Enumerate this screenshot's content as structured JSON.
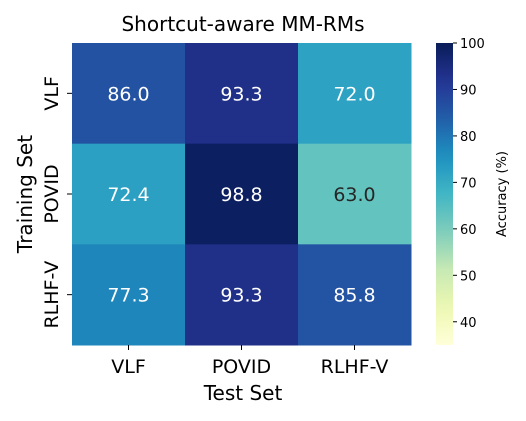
{
  "chart_data": {
    "type": "heatmap",
    "title": "Shortcut-aware MM-RMs",
    "xlabel": "Test Set",
    "ylabel": "Training Set",
    "x_categories": [
      "VLF",
      "POVID",
      "RLHF-V"
    ],
    "y_categories": [
      "VLF",
      "POVID",
      "RLHF-V"
    ],
    "values": [
      [
        86.0,
        93.3,
        72.0
      ],
      [
        72.4,
        98.8,
        63.0
      ],
      [
        77.3,
        93.3,
        85.8
      ]
    ],
    "value_format": "1 decimal",
    "colorbar": {
      "label": "Accuracy (%)",
      "range": [
        35,
        100
      ],
      "ticks": [
        40,
        50,
        60,
        70,
        80,
        90,
        100
      ],
      "colormap": "YlGnBu"
    }
  }
}
